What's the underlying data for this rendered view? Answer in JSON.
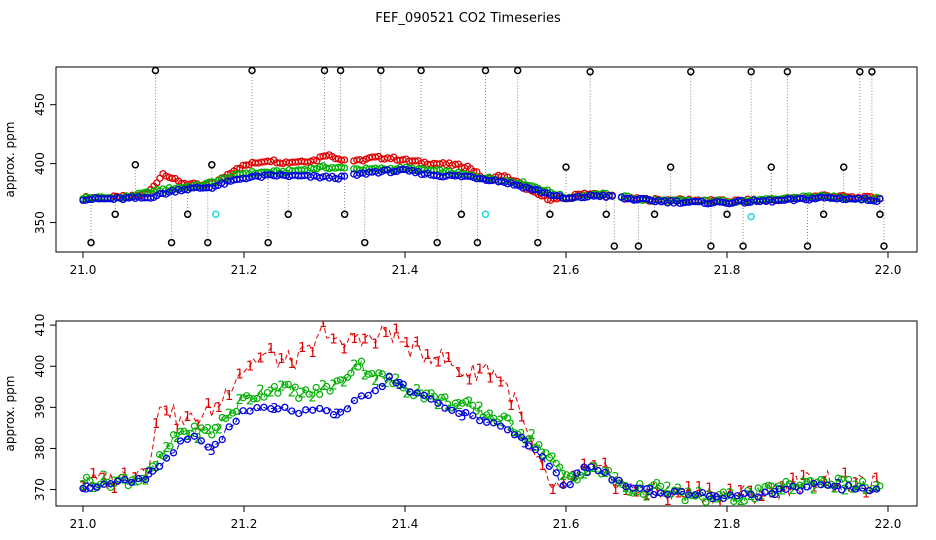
{
  "title": "FEF_090521  CO2 Timeseries",
  "colors": {
    "s1": "#e00000",
    "s2": "#00b000",
    "s3": "#0000e0",
    "outlier": "#000000",
    "cyan": "#22d8e0",
    "grey": "#888888"
  },
  "chart_data": [
    {
      "type": "scatter",
      "ylabel": "approx. ppm",
      "xlim": [
        21.0,
        22.0
      ],
      "ylim": [
        325,
        482
      ],
      "xticks": [
        "21.0",
        "21.2",
        "21.4",
        "21.6",
        "21.8",
        "22.0"
      ],
      "yticks": [
        "350",
        "400",
        "450"
      ],
      "series": [
        {
          "key": "s1",
          "x": [
            21.0,
            21.03,
            21.06,
            21.08,
            21.1,
            21.12,
            21.15,
            21.17,
            21.19,
            21.21,
            21.23,
            21.25,
            21.27,
            21.29,
            21.3,
            21.32,
            21.34,
            21.36,
            21.38,
            21.4,
            21.42,
            21.44,
            21.46,
            21.48,
            21.5,
            21.52,
            21.54,
            21.56,
            21.58,
            21.6,
            21.62,
            21.65,
            21.68,
            21.72,
            21.76,
            21.8,
            21.84,
            21.88,
            21.92,
            21.96,
            21.99
          ],
          "y": [
            371,
            371,
            372,
            374,
            392,
            384,
            381,
            386,
            396,
            400,
            403,
            401,
            402,
            403,
            408,
            404,
            402,
            405,
            405,
            403,
            401,
            400,
            399,
            397,
            386,
            390,
            384,
            375,
            370,
            370,
            375,
            373,
            370,
            369,
            369,
            368,
            369,
            370,
            373,
            371,
            371
          ]
        },
        {
          "key": "s2",
          "x": [
            21.0,
            21.05,
            21.1,
            21.15,
            21.2,
            21.25,
            21.3,
            21.35,
            21.4,
            21.45,
            21.5,
            21.55,
            21.6,
            21.65,
            21.7,
            21.75,
            21.8,
            21.85,
            21.9,
            21.95,
            21.99
          ],
          "y": [
            371,
            371,
            378,
            382,
            392,
            393,
            397,
            395,
            396,
            393,
            388,
            383,
            371,
            374,
            369,
            368,
            368,
            369,
            372,
            371,
            370
          ]
        },
        {
          "key": "s3",
          "x": [
            21.0,
            21.04,
            21.08,
            21.12,
            21.16,
            21.2,
            21.24,
            21.28,
            21.32,
            21.36,
            21.4,
            21.44,
            21.48,
            21.52,
            21.56,
            21.6,
            21.64,
            21.68,
            21.72,
            21.76,
            21.8,
            21.84,
            21.88,
            21.92,
            21.96,
            21.99
          ],
          "y": [
            370,
            370,
            371,
            378,
            380,
            388,
            390,
            389,
            388,
            393,
            394,
            390,
            389,
            385,
            378,
            370,
            373,
            370,
            368,
            367,
            367,
            368,
            369,
            371,
            370,
            369
          ]
        },
        {
          "key": "outlier",
          "x": [
            21.01,
            21.04,
            21.065,
            21.09,
            21.11,
            21.13,
            21.155,
            21.16,
            21.21,
            21.23,
            21.255,
            21.3,
            21.32,
            21.325,
            21.35,
            21.37,
            21.42,
            21.44,
            21.47,
            21.49,
            21.5,
            21.54,
            21.565,
            21.58,
            21.6,
            21.63,
            21.65,
            21.66,
            21.69,
            21.71,
            21.73,
            21.755,
            21.78,
            21.8,
            21.82,
            21.83,
            21.855,
            21.875,
            21.9,
            21.92,
            21.945,
            21.965,
            21.98,
            21.99,
            21.995
          ],
          "y": [
            333,
            357,
            399,
            479,
            333,
            357,
            333,
            399,
            479,
            333,
            357,
            479,
            479,
            357,
            333,
            479,
            479,
            333,
            357,
            333,
            479,
            479,
            333,
            357,
            397,
            478,
            357,
            330,
            330,
            357,
            397,
            478,
            330,
            357,
            330,
            478,
            397,
            478,
            330,
            357,
            397,
            478,
            478,
            357,
            330
          ]
        },
        {
          "key": "cyan",
          "x": [
            21.165,
            21.5,
            21.83
          ],
          "y": [
            357,
            357,
            355
          ]
        }
      ]
    },
    {
      "type": "scatter",
      "ylabel": "approx. ppm",
      "xlim": [
        21.0,
        22.0
      ],
      "ylim": [
        366,
        411
      ],
      "xticks": [
        "21.0",
        "21.2",
        "21.4",
        "21.6",
        "21.8",
        "22.0"
      ],
      "yticks": [
        "370",
        "380",
        "390",
        "400",
        "410"
      ],
      "series": [
        {
          "key": "s1",
          "label": "1",
          "x": [
            21.0,
            21.03,
            21.06,
            21.08,
            21.09,
            21.1,
            21.12,
            21.15,
            21.17,
            21.19,
            21.21,
            21.23,
            21.25,
            21.27,
            21.29,
            21.3,
            21.32,
            21.34,
            21.36,
            21.38,
            21.4,
            21.42,
            21.44,
            21.46,
            21.48,
            21.5,
            21.52,
            21.54,
            21.56,
            21.58,
            21.6,
            21.62,
            21.65,
            21.68,
            21.72,
            21.76,
            21.8,
            21.84,
            21.88,
            21.92,
            21.96,
            21.99
          ],
          "y": [
            372,
            372,
            374,
            376,
            385,
            392,
            386,
            388,
            391,
            398,
            401,
            403,
            401,
            402,
            405,
            410,
            404,
            408,
            406,
            409,
            405,
            403,
            403,
            400,
            398,
            400,
            397,
            390,
            378,
            371,
            370,
            375,
            374,
            370,
            369,
            369,
            369,
            369,
            371,
            373,
            371,
            371
          ]
        },
        {
          "key": "s2",
          "label": "2",
          "x": [
            21.0,
            21.04,
            21.08,
            21.12,
            21.16,
            21.2,
            21.24,
            21.28,
            21.32,
            21.34,
            21.36,
            21.4,
            21.44,
            21.48,
            21.52,
            21.56,
            21.6,
            21.64,
            21.68,
            21.72,
            21.76,
            21.8,
            21.84,
            21.88,
            21.92,
            21.96,
            21.99
          ],
          "y": [
            372,
            372,
            373,
            384,
            384,
            392,
            395,
            393,
            396,
            401,
            398,
            395,
            392,
            390,
            387,
            382,
            373,
            375,
            370,
            370,
            368,
            368,
            369,
            371,
            372,
            371,
            370
          ]
        },
        {
          "key": "s3",
          "label": "3",
          "x": [
            21.0,
            21.03,
            21.06,
            21.09,
            21.12,
            21.14,
            21.16,
            21.18,
            21.2,
            21.24,
            21.28,
            21.32,
            21.36,
            21.38,
            21.4,
            21.44,
            21.48,
            21.52,
            21.56,
            21.58,
            21.6,
            21.62,
            21.64,
            21.68,
            21.72,
            21.76,
            21.8,
            21.84,
            21.88,
            21.92,
            21.96,
            21.99
          ],
          "y": [
            371,
            371,
            372,
            374,
            381,
            383,
            379,
            385,
            389,
            390,
            389,
            389,
            394,
            397,
            395,
            391,
            388,
            386,
            380,
            376,
            370,
            376,
            374,
            371,
            369,
            369,
            368,
            369,
            370,
            371,
            370,
            370
          ]
        }
      ]
    }
  ]
}
